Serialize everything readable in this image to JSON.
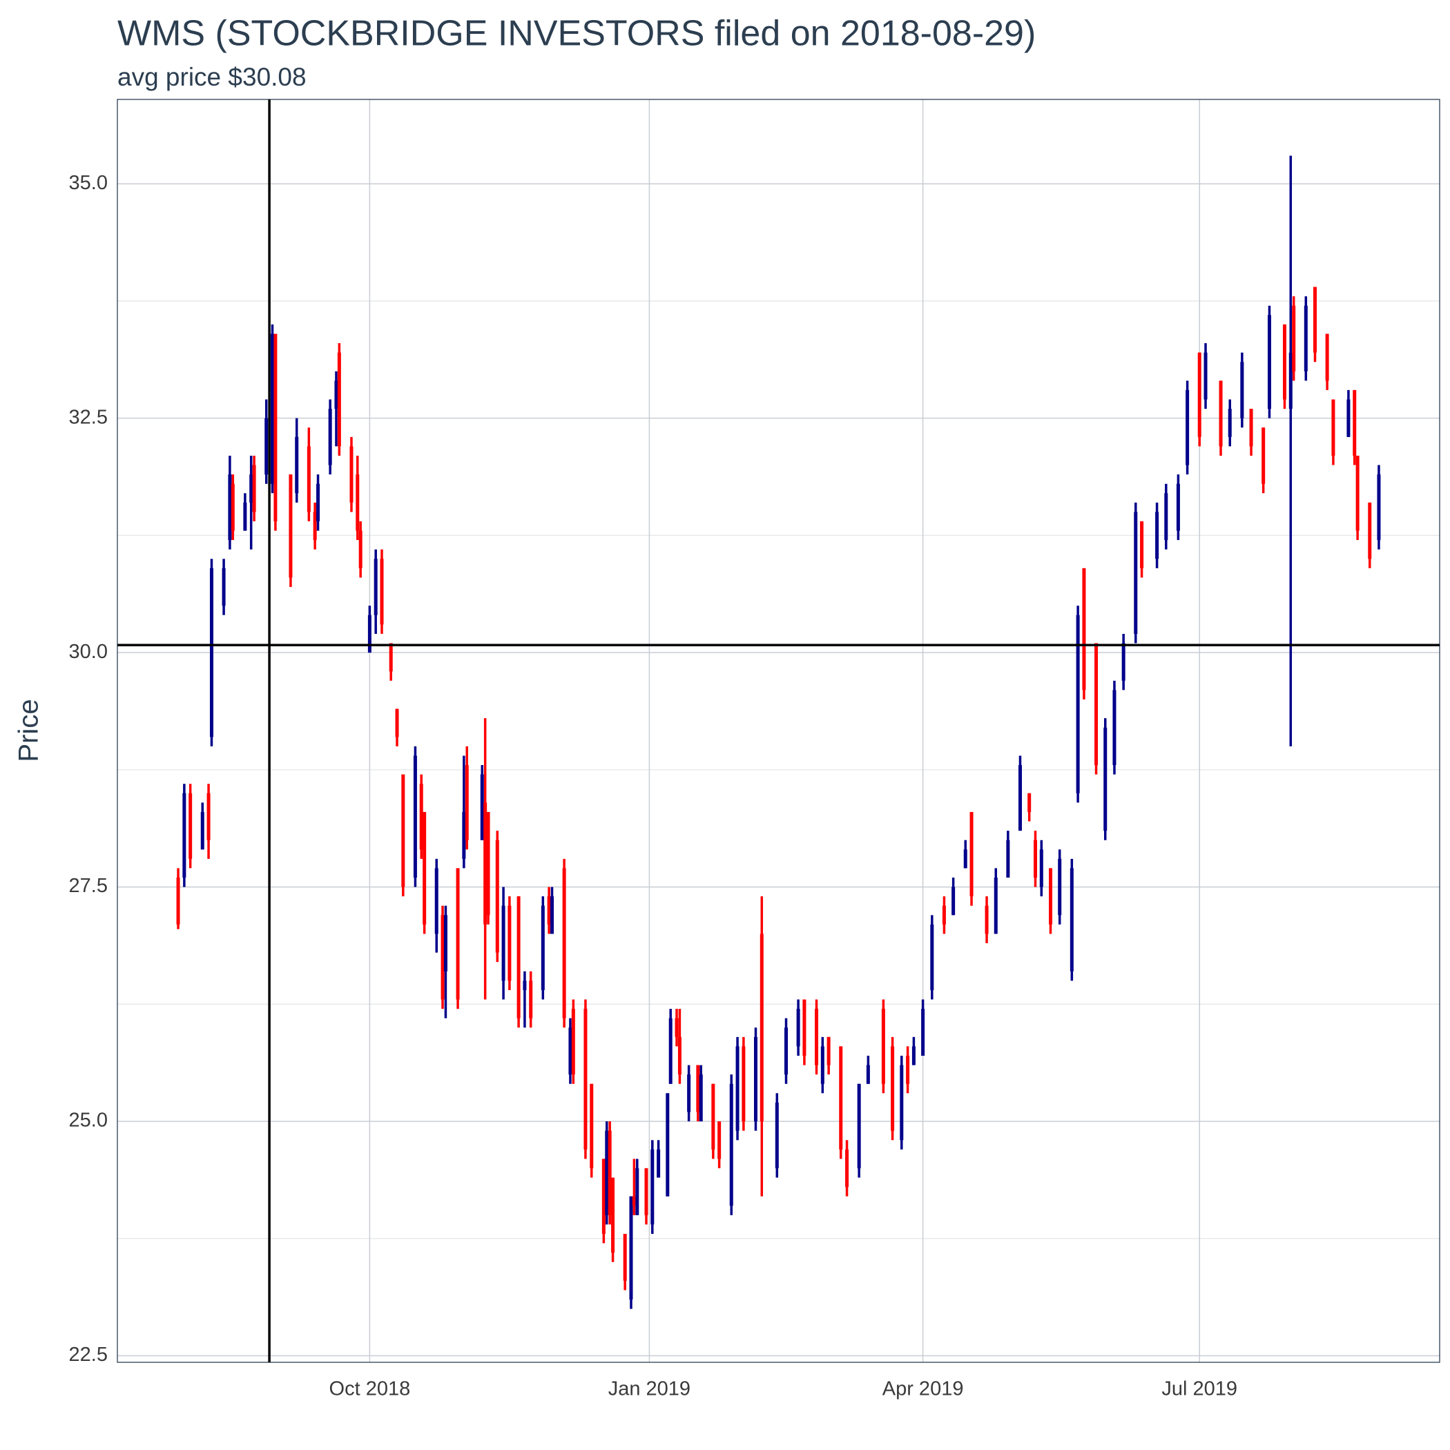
{
  "chart_data": {
    "type": "candlestick",
    "title": "WMS (STOCKBRIDGE INVESTORS filed on 2018-08-29)",
    "subtitle": "avg price $30.08",
    "y_label": "Price",
    "up_color": "#00008b",
    "down_color": "#ff0000",
    "vline": "2018-08-29",
    "hline": 30.08,
    "xlim": [
      "2018-07-10",
      "2019-09-18"
    ],
    "xticks": [
      {
        "value": "2018-10-01",
        "label": "Oct 2018"
      },
      {
        "value": "2019-01-01",
        "label": "Jan 2019"
      },
      {
        "value": "2019-04-01",
        "label": "Apr 2019"
      },
      {
        "value": "2019-07-01",
        "label": "Jul 2019"
      }
    ],
    "ylim": [
      22.43,
      35.9
    ],
    "yticks": [
      {
        "value": 22.5,
        "label": "22.5"
      },
      {
        "value": 25,
        "label": "25.0"
      },
      {
        "value": 27.5,
        "label": "27.5"
      },
      {
        "value": 30,
        "label": "30.0"
      },
      {
        "value": 32.5,
        "label": "32.5"
      },
      {
        "value": 35,
        "label": "35.0"
      }
    ],
    "y_minor_grid": [
      23.75,
      26.25,
      28.75,
      31.25,
      33.75
    ],
    "grid": true,
    "x": [
      "2018-07-30",
      "2018-08-01",
      "2018-08-03",
      "2018-08-07",
      "2018-08-09",
      "2018-08-10",
      "2018-08-14",
      "2018-08-16",
      "2018-08-17",
      "2018-08-21",
      "2018-08-23",
      "2018-08-24",
      "2018-08-28",
      "2018-08-30",
      "2018-08-31",
      "2018-09-05",
      "2018-09-07",
      "2018-09-11",
      "2018-09-13",
      "2018-09-14",
      "2018-09-18",
      "2018-09-20",
      "2018-09-21",
      "2018-09-25",
      "2018-09-27",
      "2018-09-28",
      "2018-10-01",
      "2018-10-03",
      "2018-10-05",
      "2018-10-08",
      "2018-10-10",
      "2018-10-12",
      "2018-10-16",
      "2018-10-18",
      "2018-10-19",
      "2018-10-23",
      "2018-10-25",
      "2018-10-26",
      "2018-10-30",
      "2018-11-01",
      "2018-11-02",
      "2018-11-07",
      "2018-11-08",
      "2018-11-09",
      "2018-11-12",
      "2018-11-14",
      "2018-11-16",
      "2018-11-19",
      "2018-11-21",
      "2018-11-23",
      "2018-11-27",
      "2018-11-29",
      "2018-11-30",
      "2018-12-04",
      "2018-12-06",
      "2018-12-07",
      "2018-12-11",
      "2018-12-13",
      "2018-12-17",
      "2018-12-18",
      "2018-12-19",
      "2018-12-20",
      "2018-12-24",
      "2018-12-26",
      "2018-12-27",
      "2018-12-28",
      "2018-12-31",
      "2019-01-02",
      "2019-01-04",
      "2019-01-07",
      "2019-01-08",
      "2019-01-10",
      "2019-01-11",
      "2019-01-14",
      "2019-01-17",
      "2019-01-18",
      "2019-01-22",
      "2019-01-24",
      "2019-01-28",
      "2019-01-30",
      "2019-02-01",
      "2019-02-05",
      "2019-02-07",
      "2019-02-12",
      "2019-02-15",
      "2019-02-19",
      "2019-02-21",
      "2019-02-25",
      "2019-02-27",
      "2019-03-01",
      "2019-03-05",
      "2019-03-07",
      "2019-03-11",
      "2019-03-14",
      "2019-03-19",
      "2019-03-22",
      "2019-03-25",
      "2019-03-27",
      "2019-03-29",
      "2019-04-01",
      "2019-04-04",
      "2019-04-08",
      "2019-04-11",
      "2019-04-15",
      "2019-04-17",
      "2019-04-22",
      "2019-04-25",
      "2019-04-29",
      "2019-05-03",
      "2019-05-06",
      "2019-05-08",
      "2019-05-10",
      "2019-05-13",
      "2019-05-16",
      "2019-05-20",
      "2019-05-22",
      "2019-05-24",
      "2019-05-28",
      "2019-05-31",
      "2019-06-03",
      "2019-06-06",
      "2019-06-10",
      "2019-06-12",
      "2019-06-17",
      "2019-06-20",
      "2019-06-24",
      "2019-06-27",
      "2019-07-01",
      "2019-07-03",
      "2019-07-08",
      "2019-07-11",
      "2019-07-15",
      "2019-07-18",
      "2019-07-22",
      "2019-07-24",
      "2019-07-29",
      "2019-07-31",
      "2019-08-01",
      "2019-08-05",
      "2019-08-08",
      "2019-08-12",
      "2019-08-14",
      "2019-08-19",
      "2019-08-21",
      "2019-08-22",
      "2019-08-26",
      "2019-08-29"
    ],
    "open": [
      27.6,
      27.6,
      28.5,
      27.9,
      28.5,
      29.1,
      30.5,
      31.2,
      31.8,
      31.3,
      31.6,
      32.0,
      31.9,
      31.8,
      33.4,
      31.9,
      31.7,
      32.2,
      31.5,
      31.4,
      32.0,
      32.6,
      33.2,
      32.2,
      31.9,
      31.3,
      30.0,
      30.4,
      31.0,
      30.1,
      29.4,
      28.7,
      27.6,
      28.6,
      28.3,
      27.0,
      27.2,
      26.6,
      27.7,
      27.8,
      28.8,
      28.0,
      28.4,
      28.3,
      28.0,
      26.5,
      27.3,
      27.4,
      26.4,
      26.5,
      26.4,
      27.4,
      27.0,
      27.7,
      25.5,
      26.2,
      26.2,
      25.4,
      24.6,
      24.0,
      24.9,
      24.4,
      23.8,
      23.1,
      24.2,
      24.0,
      24.5,
      23.9,
      24.4,
      24.2,
      25.4,
      26.1,
      25.9,
      25.1,
      25.6,
      25.0,
      25.4,
      25.0,
      24.1,
      24.9,
      25.8,
      25.0,
      27.0,
      24.5,
      25.5,
      25.8,
      26.3,
      26.2,
      25.4,
      25.9,
      25.8,
      24.7,
      24.5,
      25.4,
      26.2,
      25.8,
      24.8,
      25.7,
      25.6,
      25.7,
      26.4,
      27.3,
      27.2,
      27.7,
      28.3,
      27.3,
      27.0,
      27.6,
      28.1,
      28.5,
      28.0,
      27.5,
      27.7,
      27.2,
      26.6,
      28.5,
      30.9,
      30.1,
      28.1,
      28.8,
      29.7,
      30.2,
      31.4,
      31.0,
      31.2,
      31.3,
      32.0,
      33.2,
      32.7,
      32.9,
      32.3,
      32.5,
      32.6,
      32.4,
      32.6,
      33.5,
      32.6,
      33.7,
      33.0,
      33.9,
      33.4,
      32.7,
      32.3,
      32.8,
      32.1,
      31.6,
      31.2
    ],
    "high": [
      27.7,
      28.6,
      28.6,
      28.4,
      28.6,
      31.0,
      31.0,
      32.1,
      31.9,
      31.7,
      32.1,
      32.1,
      32.7,
      33.5,
      33.4,
      31.9,
      32.5,
      32.4,
      31.6,
      31.9,
      32.7,
      33.0,
      33.3,
      32.3,
      32.1,
      31.4,
      30.5,
      31.1,
      31.1,
      30.1,
      29.4,
      28.7,
      29.0,
      28.7,
      28.3,
      27.8,
      27.3,
      27.3,
      27.7,
      28.9,
      29.0,
      28.8,
      29.3,
      28.3,
      28.1,
      27.5,
      27.4,
      27.4,
      26.6,
      26.6,
      27.4,
      27.5,
      27.5,
      27.8,
      26.1,
      26.3,
      26.3,
      25.4,
      24.6,
      25.0,
      25.0,
      24.4,
      23.8,
      24.2,
      24.6,
      24.6,
      24.5,
      24.8,
      24.8,
      25.3,
      26.2,
      26.2,
      26.2,
      25.6,
      25.6,
      25.6,
      25.4,
      25.0,
      25.5,
      25.9,
      25.9,
      26.0,
      27.4,
      25.3,
      26.1,
      26.3,
      26.3,
      26.3,
      25.9,
      25.9,
      25.8,
      24.8,
      25.4,
      25.7,
      26.3,
      25.9,
      25.7,
      25.8,
      25.9,
      26.3,
      27.2,
      27.4,
      27.6,
      28.0,
      28.3,
      27.4,
      27.7,
      28.1,
      28.9,
      28.5,
      28.1,
      28.0,
      27.7,
      27.9,
      27.8,
      30.5,
      30.9,
      30.1,
      29.3,
      29.7,
      30.2,
      31.6,
      31.4,
      31.6,
      31.8,
      31.9,
      32.9,
      33.2,
      33.3,
      32.9,
      32.7,
      33.2,
      32.6,
      32.4,
      33.7,
      33.5,
      35.3,
      33.8,
      33.8,
      33.9,
      33.4,
      32.7,
      32.8,
      32.8,
      32.1,
      31.6,
      32.0
    ],
    "low": [
      27.05,
      27.5,
      27.7,
      27.9,
      27.8,
      29.0,
      30.4,
      31.1,
      31.2,
      31.3,
      31.1,
      31.4,
      31.8,
      31.7,
      31.3,
      30.7,
      31.6,
      31.4,
      31.1,
      31.3,
      31.9,
      32.2,
      32.1,
      31.5,
      31.2,
      30.8,
      30.0,
      30.2,
      30.2,
      29.7,
      29.0,
      27.4,
      27.5,
      27.8,
      27.0,
      26.8,
      26.2,
      26.1,
      26.2,
      27.7,
      27.9,
      28.0,
      26.3,
      27.1,
      26.7,
      26.3,
      26.4,
      26.0,
      26.0,
      26.0,
      26.3,
      27.0,
      27.0,
      26.0,
      25.4,
      25.4,
      24.6,
      24.4,
      23.7,
      23.9,
      23.9,
      23.5,
      23.2,
      23.0,
      24.0,
      24.0,
      23.9,
      23.8,
      24.4,
      24.2,
      25.4,
      25.8,
      25.4,
      25.0,
      25.0,
      25.0,
      24.6,
      24.5,
      24.0,
      24.8,
      24.9,
      24.9,
      24.2,
      24.4,
      25.4,
      25.7,
      25.6,
      25.5,
      25.3,
      25.5,
      24.6,
      24.2,
      24.4,
      25.4,
      25.3,
      24.8,
      24.7,
      25.3,
      25.6,
      25.7,
      26.3,
      27.0,
      27.2,
      27.7,
      27.3,
      26.9,
      27.0,
      27.6,
      28.1,
      28.2,
      27.5,
      27.4,
      27.0,
      27.1,
      26.5,
      28.4,
      29.5,
      28.7,
      28.0,
      28.7,
      29.6,
      30.1,
      30.8,
      30.9,
      31.1,
      31.2,
      31.9,
      32.2,
      32.6,
      32.1,
      32.2,
      32.4,
      32.1,
      31.7,
      32.5,
      32.6,
      29.0,
      32.9,
      32.9,
      33.1,
      32.8,
      32.0,
      32.3,
      32.0,
      31.2,
      30.9,
      31.1
    ],
    "close": [
      27.1,
      28.5,
      27.8,
      28.3,
      28.0,
      30.9,
      30.9,
      31.9,
      31.3,
      31.6,
      31.9,
      31.5,
      32.5,
      33.4,
      31.4,
      30.8,
      32.3,
      31.5,
      31.2,
      31.8,
      32.6,
      32.9,
      32.2,
      31.6,
      31.3,
      30.9,
      30.4,
      31.0,
      30.3,
      29.8,
      29.1,
      27.5,
      28.9,
      27.9,
      27.1,
      27.7,
      26.3,
      27.2,
      26.3,
      28.3,
      28.0,
      28.7,
      27.1,
      27.2,
      26.8,
      27.3,
      26.5,
      26.1,
      26.5,
      26.1,
      27.3,
      27.1,
      27.4,
      26.1,
      26.0,
      25.5,
      24.7,
      24.5,
      23.8,
      24.9,
      24.0,
      23.6,
      23.3,
      24.2,
      24.1,
      24.5,
      24.0,
      24.7,
      24.7,
      25.3,
      26.1,
      25.9,
      25.5,
      25.5,
      25.1,
      25.5,
      24.7,
      24.6,
      25.4,
      25.8,
      25.0,
      25.9,
      25.0,
      25.2,
      26.0,
      26.2,
      25.7,
      25.6,
      25.8,
      25.6,
      24.7,
      24.3,
      25.4,
      25.6,
      25.4,
      24.9,
      25.6,
      25.4,
      25.8,
      26.2,
      27.1,
      27.1,
      27.5,
      27.9,
      27.4,
      27.0,
      27.6,
      28.0,
      28.8,
      28.3,
      27.6,
      27.9,
      27.1,
      27.8,
      27.7,
      30.4,
      29.6,
      28.8,
      29.2,
      29.6,
      30.1,
      31.5,
      30.9,
      31.5,
      31.7,
      31.8,
      32.8,
      32.3,
      33.2,
      32.2,
      32.6,
      33.1,
      32.2,
      31.8,
      33.6,
      32.7,
      33.2,
      33.0,
      33.7,
      33.2,
      32.9,
      32.1,
      32.7,
      32.1,
      31.3,
      31.0,
      31.9
    ]
  }
}
